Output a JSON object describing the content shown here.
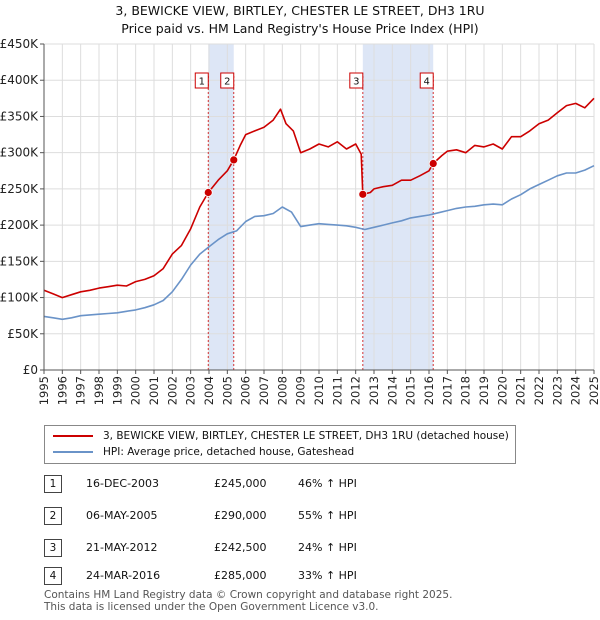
{
  "title": {
    "line1": "3, BEWICKE VIEW, BIRTLEY, CHESTER LE STREET, DH3 1RU",
    "line2": "Price paid vs. HM Land Registry's House Price Index (HPI)"
  },
  "colors": {
    "property": "#cc0000",
    "hpi": "#6a93c8",
    "shade": "#dde6f6",
    "grid": "#dddddd",
    "axis": "#555555"
  },
  "chart_data": {
    "type": "line",
    "title": "Price paid vs. HM Land Registry's House Price Index (HPI)",
    "xlabel": "",
    "ylabel": "",
    "xlim": [
      1995,
      2025
    ],
    "ylim": [
      0,
      450000
    ],
    "y_ticks": [
      0,
      50000,
      100000,
      150000,
      200000,
      250000,
      300000,
      350000,
      400000,
      450000
    ],
    "y_tick_labels": [
      "£0",
      "£50K",
      "£100K",
      "£150K",
      "£200K",
      "£250K",
      "£300K",
      "£350K",
      "£400K",
      "£450K"
    ],
    "x_ticks": [
      1995,
      1996,
      1997,
      1998,
      1999,
      2000,
      2001,
      2002,
      2003,
      2004,
      2005,
      2006,
      2007,
      2008,
      2009,
      2010,
      2011,
      2012,
      2013,
      2014,
      2015,
      2016,
      2017,
      2018,
      2019,
      2020,
      2021,
      2022,
      2023,
      2024,
      2025
    ],
    "grid": true,
    "shaded_ranges": [
      [
        2003.96,
        2005.35
      ],
      [
        2012.39,
        2016.23
      ]
    ],
    "series": [
      {
        "name": "3, BEWICKE VIEW, BIRTLEY, CHESTER LE STREET, DH3 1RU (detached house)",
        "color": "#cc0000",
        "x": [
          1995.0,
          1995.5,
          1996.0,
          1996.5,
          1997.0,
          1997.5,
          1998.0,
          1998.5,
          1999.0,
          1999.5,
          2000.0,
          2000.5,
          2001.0,
          2001.5,
          2002.0,
          2002.5,
          2003.0,
          2003.5,
          2003.96,
          2004.5,
          2005.0,
          2005.35,
          2005.7,
          2006.0,
          2006.5,
          2007.0,
          2007.5,
          2007.9,
          2008.2,
          2008.6,
          2009.0,
          2009.5,
          2010.0,
          2010.5,
          2011.0,
          2011.5,
          2012.0,
          2012.3,
          2012.39,
          2012.8,
          2013.0,
          2013.5,
          2014.0,
          2014.5,
          2015.0,
          2015.5,
          2016.0,
          2016.23,
          2016.7,
          2017.0,
          2017.5,
          2018.0,
          2018.5,
          2019.0,
          2019.5,
          2020.0,
          2020.5,
          2021.0,
          2021.5,
          2022.0,
          2022.5,
          2023.0,
          2023.5,
          2024.0,
          2024.5,
          2025.0
        ],
        "values": [
          110000,
          105000,
          100000,
          104000,
          108000,
          110000,
          113000,
          115000,
          117000,
          116000,
          122000,
          125000,
          130000,
          140000,
          160000,
          172000,
          195000,
          225000,
          245000,
          262000,
          275000,
          290000,
          310000,
          325000,
          330000,
          335000,
          345000,
          360000,
          340000,
          330000,
          300000,
          305000,
          312000,
          308000,
          315000,
          305000,
          312000,
          298000,
          242500,
          245000,
          250000,
          253000,
          255000,
          262000,
          262000,
          268000,
          275000,
          285000,
          296000,
          302000,
          304000,
          300000,
          310000,
          308000,
          312000,
          305000,
          322000,
          322000,
          330000,
          340000,
          345000,
          355000,
          365000,
          368000,
          362000,
          375000
        ]
      },
      {
        "name": "HPI: Average price, detached house, Gateshead",
        "color": "#6a93c8",
        "x": [
          1995.0,
          1995.5,
          1996.0,
          1996.5,
          1997.0,
          1997.5,
          1998.0,
          1998.5,
          1999.0,
          1999.5,
          2000.0,
          2000.5,
          2001.0,
          2001.5,
          2002.0,
          2002.5,
          2003.0,
          2003.5,
          2004.0,
          2004.5,
          2005.0,
          2005.5,
          2006.0,
          2006.5,
          2007.0,
          2007.5,
          2008.0,
          2008.5,
          2009.0,
          2009.5,
          2010.0,
          2010.5,
          2011.0,
          2011.5,
          2012.0,
          2012.5,
          2013.0,
          2013.5,
          2014.0,
          2014.5,
          2015.0,
          2015.5,
          2016.0,
          2016.5,
          2017.0,
          2017.5,
          2018.0,
          2018.5,
          2019.0,
          2019.5,
          2020.0,
          2020.5,
          2021.0,
          2021.5,
          2022.0,
          2022.5,
          2023.0,
          2023.5,
          2024.0,
          2024.5,
          2025.0
        ],
        "values": [
          74000,
          72000,
          70000,
          72000,
          75000,
          76000,
          77000,
          78000,
          79000,
          81000,
          83000,
          86000,
          90000,
          96000,
          108000,
          125000,
          145000,
          160000,
          170000,
          180000,
          188000,
          192000,
          205000,
          212000,
          213000,
          216000,
          225000,
          218000,
          198000,
          200000,
          202000,
          201000,
          200000,
          199000,
          197000,
          194000,
          197000,
          200000,
          203000,
          206000,
          210000,
          212000,
          214000,
          217000,
          220000,
          223000,
          225000,
          226000,
          228000,
          229000,
          228000,
          236000,
          242000,
          250000,
          256000,
          262000,
          268000,
          272000,
          272000,
          276000,
          282000
        ]
      }
    ],
    "sales": [
      {
        "label": "1",
        "x": 2003.96,
        "value": 245000
      },
      {
        "label": "2",
        "x": 2005.35,
        "value": 290000
      },
      {
        "label": "3",
        "x": 2012.39,
        "value": 242500
      },
      {
        "label": "4",
        "x": 2016.23,
        "value": 285000
      }
    ]
  },
  "legend": {
    "property": "3, BEWICKE VIEW, BIRTLEY, CHESTER LE STREET, DH3 1RU (detached house)",
    "hpi": "HPI: Average price, detached house, Gateshead"
  },
  "sales_table": [
    {
      "num": "1",
      "date": "16-DEC-2003",
      "price": "£245,000",
      "pct": "46% ↑ HPI"
    },
    {
      "num": "2",
      "date": "06-MAY-2005",
      "price": "£290,000",
      "pct": "55% ↑ HPI"
    },
    {
      "num": "3",
      "date": "21-MAY-2012",
      "price": "£242,500",
      "pct": "24% ↑ HPI"
    },
    {
      "num": "4",
      "date": "24-MAR-2016",
      "price": "£285,000",
      "pct": "33% ↑ HPI"
    }
  ],
  "footer": {
    "line1": "Contains HM Land Registry data © Crown copyright and database right 2025.",
    "line2": "This data is licensed under the Open Government Licence v3.0."
  }
}
